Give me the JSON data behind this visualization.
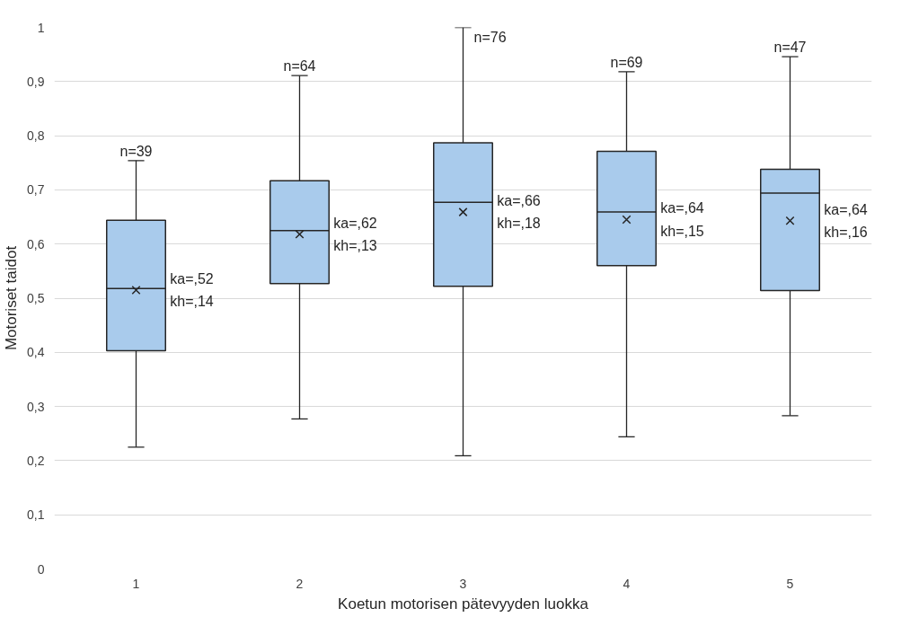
{
  "chart_data": {
    "type": "box",
    "xlabel": "Koetun motorisen pätevyyden luokka",
    "ylabel": "Motoriset taidot",
    "categories": [
      "1",
      "2",
      "3",
      "4",
      "5"
    ],
    "color": "#a9cbec",
    "boxes": [
      {
        "low": 0.225,
        "q1": 0.403,
        "median": 0.518,
        "q3": 0.644,
        "high": 0.754,
        "mean": 0.515
      },
      {
        "low": 0.277,
        "q1": 0.527,
        "median": 0.625,
        "q3": 0.717,
        "high": 0.911,
        "mean": 0.618
      },
      {
        "low": 0.209,
        "q1": 0.522,
        "median": 0.677,
        "q3": 0.787,
        "high": 1.0,
        "mean": 0.659
      },
      {
        "low": 0.244,
        "q1": 0.56,
        "median": 0.659,
        "q3": 0.771,
        "high": 0.918,
        "mean": 0.645
      },
      {
        "low": 0.283,
        "q1": 0.514,
        "median": 0.694,
        "q3": 0.738,
        "high": 0.946,
        "mean": 0.643
      }
    ],
    "ylim": [
      0,
      1
    ],
    "yticks": [
      0,
      {
        "value": 0.1,
        "label": "0,1"
      },
      {
        "value": 0.2,
        "label": "0,2"
      },
      {
        "value": 0.3,
        "label": "0,3"
      },
      {
        "value": 0.4,
        "label": "0,4"
      },
      {
        "value": 0.5,
        "label": "0,5"
      },
      {
        "value": 0.6,
        "label": "0,6"
      },
      {
        "value": 0.7,
        "label": "0,7"
      },
      {
        "value": 0.8,
        "label": "0,8"
      },
      {
        "value": 0.9,
        "label": "0,9"
      },
      1
    ],
    "grid": "y",
    "annotations": [
      {
        "text": "n=39",
        "x": "1",
        "y": 0.754
      },
      {
        "text": "n=64",
        "x": "2",
        "y": 0.911
      },
      {
        "text": "n=76",
        "x": "3",
        "y": 1.0
      },
      {
        "text": "n=69",
        "x": "4",
        "y": 0.918
      },
      {
        "text": "n=47",
        "x": "5",
        "y": 0.946
      },
      "ka=,52\nkh=,14",
      "ka=,62\nkh=,13",
      "ka=,66\nkh=,18",
      "ka=,64\nkh=,15",
      "ka=,64\nkh=,16"
    ]
  }
}
